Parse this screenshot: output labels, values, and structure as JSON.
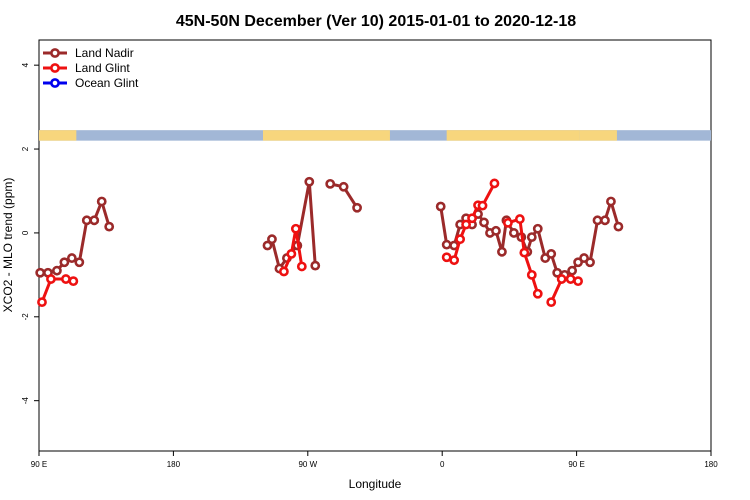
{
  "chart_data": {
    "type": "line",
    "title": "45N-50N December (Ver 10)   2015-01-01 to 2020-12-18",
    "xlabel": "Longitude",
    "ylabel": "XCO2 - MLO trend (ppm)",
    "x_axis": {
      "range": [
        90,
        450
      ],
      "ticks": [
        90,
        180,
        270,
        360,
        450
      ],
      "tick_labels": [
        "90 E",
        "180",
        "90 W",
        "0",
        "90 E",
        "180"
      ],
      "label_positions": [
        90,
        180,
        270,
        360,
        450,
        540
      ],
      "display_range": [
        90,
        540
      ]
    },
    "ylim": [
      -5.2,
      4.6
    ],
    "yticks": [
      -4,
      -2,
      0,
      2,
      4
    ],
    "ytick_labels": [
      "-4",
      "-2",
      "0",
      "2",
      "4"
    ],
    "legend": {
      "position": "top-left"
    },
    "grid": false,
    "map_strip": {
      "y_range": [
        2.2,
        2.45
      ],
      "ocean_color": "#a2b7d6",
      "land_color": "#f7d67d"
    },
    "series": [
      {
        "name": "Land Nadir",
        "color": "#9b2a2a",
        "segments": [
          [
            [
              90.8,
              -0.95
            ],
            [
              96,
              -0.95
            ],
            [
              102,
              -0.9
            ],
            [
              107,
              -0.7
            ],
            [
              112,
              -0.6
            ],
            [
              117,
              -0.7
            ],
            [
              122,
              0.3
            ],
            [
              127,
              0.3
            ],
            [
              132,
              0.75
            ],
            [
              137,
              0.15
            ]
          ],
          [
            [
              243,
              -0.3
            ],
            [
              246,
              -0.15
            ],
            [
              251,
              -0.85
            ],
            [
              256,
              -0.6
            ],
            [
              263,
              -0.3
            ],
            [
              271,
              1.22
            ],
            [
              275,
              -0.78
            ]
          ],
          [
            [
              285,
              1.17
            ],
            [
              294,
              1.1
            ],
            [
              303,
              0.6
            ]
          ],
          [
            [
              359,
              0.63
            ],
            [
              363,
              -0.28
            ],
            [
              368,
              -0.3
            ],
            [
              372,
              0.2
            ],
            [
              376,
              0.35
            ],
            [
              380,
              0.2
            ],
            [
              384,
              0.45
            ],
            [
              388,
              0.25
            ],
            [
              392,
              0.0
            ],
            [
              396,
              0.05
            ],
            [
              400,
              -0.45
            ],
            [
              403,
              0.3
            ],
            [
              408,
              0.0
            ],
            [
              413,
              -0.1
            ],
            [
              417,
              -0.45
            ],
            [
              420,
              -0.1
            ],
            [
              424,
              0.1
            ],
            [
              429,
              -0.6
            ],
            [
              433,
              -0.5
            ],
            [
              437,
              -0.95
            ],
            [
              442,
              -1.0
            ],
            [
              447,
              -0.9
            ],
            [
              451,
              -0.7
            ],
            [
              455,
              -0.6
            ],
            [
              459,
              -0.7
            ],
            [
              464,
              0.3
            ],
            [
              469,
              0.3
            ],
            [
              473,
              0.75
            ],
            [
              478,
              0.15
            ]
          ]
        ]
      },
      {
        "name": "Land Glint",
        "color": "#ee1111",
        "segments": [
          [
            [
              92,
              -1.65
            ],
            [
              98,
              -1.1
            ],
            [
              108,
              -1.1
            ],
            [
              113,
              -1.15
            ]
          ],
          [
            [
              254,
              -0.92
            ],
            [
              259,
              -0.5
            ],
            [
              262,
              0.1
            ],
            [
              266,
              -0.8
            ]
          ],
          [
            [
              363,
              -0.58
            ],
            [
              368,
              -0.65
            ],
            [
              372,
              -0.15
            ],
            [
              376,
              0.2
            ],
            [
              380,
              0.35
            ],
            [
              384,
              0.66
            ],
            [
              387,
              0.65
            ],
            [
              395,
              1.18
            ]
          ],
          [
            [
              404,
              0.24
            ],
            [
              412,
              0.33
            ],
            [
              415,
              -0.47
            ],
            [
              420,
              -1.0
            ],
            [
              424,
              -1.45
            ]
          ],
          [
            [
              433,
              -1.65
            ],
            [
              440,
              -1.1
            ],
            [
              446,
              -1.1
            ],
            [
              451,
              -1.15
            ]
          ]
        ]
      },
      {
        "name": "Ocean Glint",
        "color": "#0000ee",
        "segments": []
      }
    ]
  }
}
